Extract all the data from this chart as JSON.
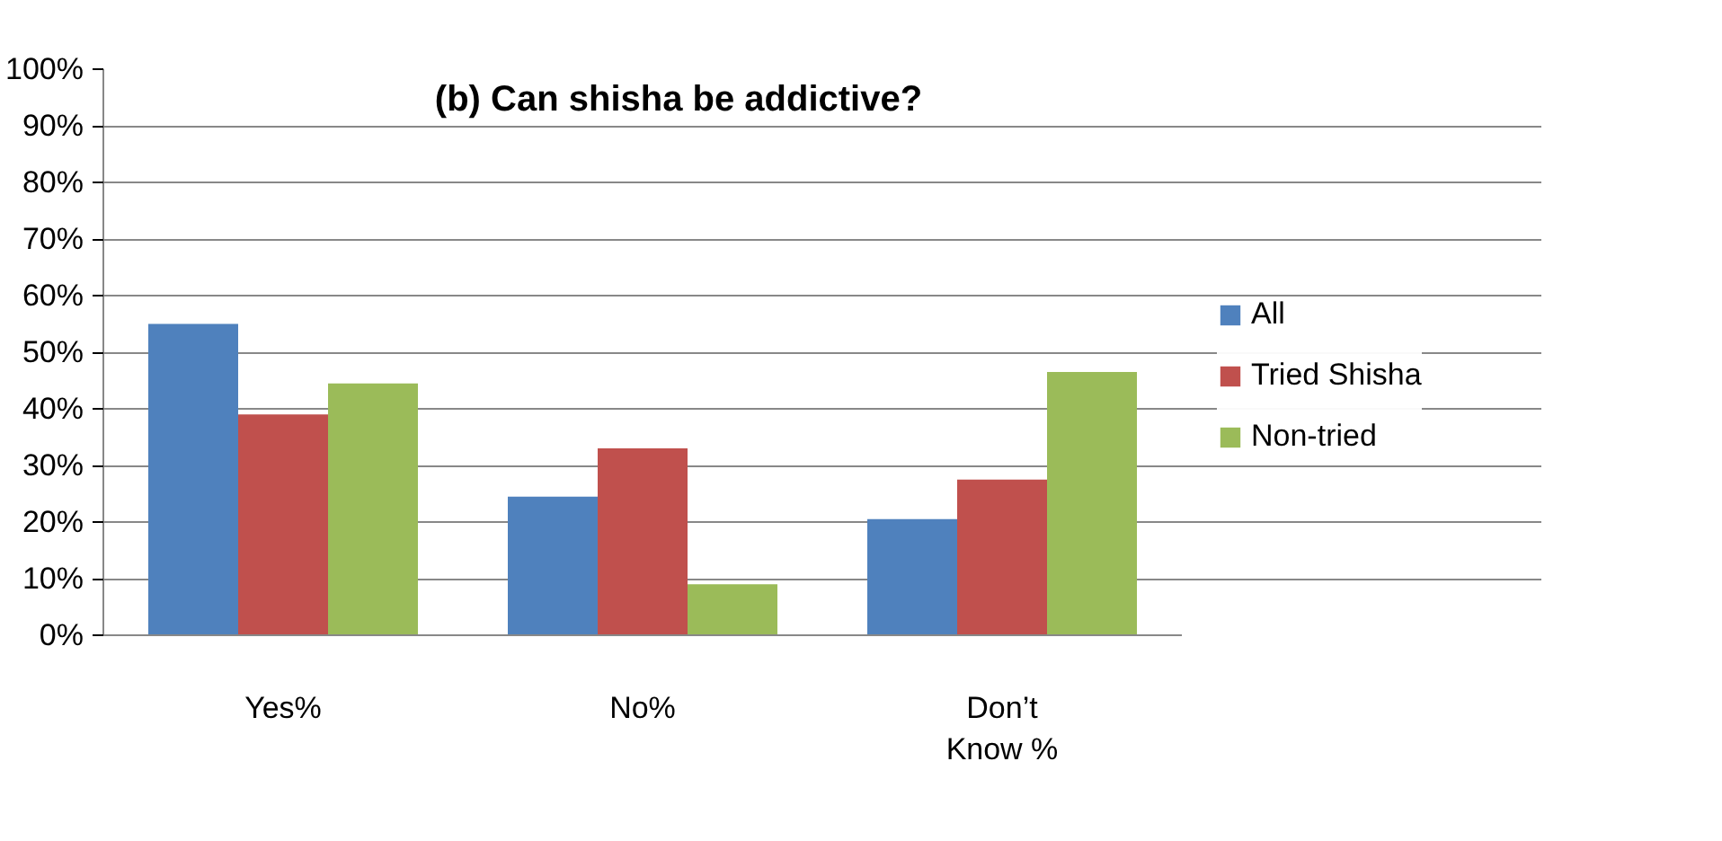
{
  "chart_data": {
    "type": "bar",
    "title": "(b) Can shisha be addictive?",
    "categories": [
      "Yes%",
      "No%",
      "Don’t\nKnow %"
    ],
    "series": [
      {
        "name": "All",
        "color": "#4f81bd",
        "values": [
          55,
          24.5,
          20.5
        ]
      },
      {
        "name": "Tried Shisha",
        "color": "#c0504d",
        "values": [
          39,
          33,
          27.5
        ]
      },
      {
        "name": "Non-tried",
        "color": "#9bbb59",
        "values": [
          44.5,
          9,
          46.5
        ]
      }
    ],
    "ylim": [
      0,
      100
    ],
    "yticks": [
      {
        "value": 0,
        "label": "0%"
      },
      {
        "value": 10,
        "label": "10%"
      },
      {
        "value": 20,
        "label": "20%"
      },
      {
        "value": 30,
        "label": "30%"
      },
      {
        "value": 40,
        "label": "40%"
      },
      {
        "value": 50,
        "label": "50%"
      },
      {
        "value": 60,
        "label": "60%"
      },
      {
        "value": 70,
        "label": "70%"
      },
      {
        "value": 80,
        "label": "80%"
      },
      {
        "value": 90,
        "label": "90%"
      },
      {
        "value": 100,
        "label": "100%"
      }
    ],
    "grid": "y",
    "legend": "right"
  }
}
